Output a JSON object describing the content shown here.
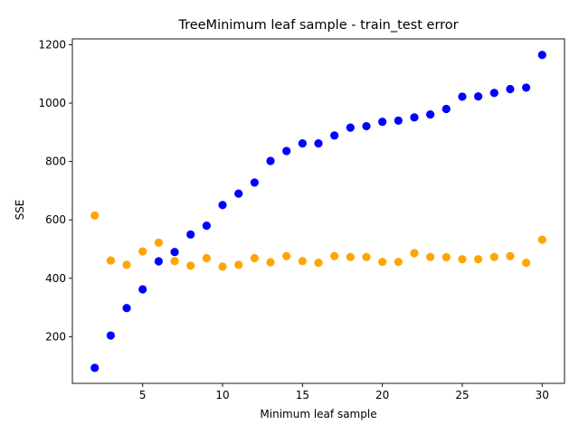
{
  "chart_data": {
    "type": "scatter",
    "title": "TreeMinimum leaf sample - train_test error",
    "xlabel": "Minimum leaf sample",
    "ylabel": "SSE",
    "xlim": [
      0.6,
      31.4
    ],
    "ylim": [
      40,
      1220
    ],
    "xticks": [
      5,
      10,
      15,
      20,
      25,
      30
    ],
    "yticks": [
      200,
      400,
      600,
      800,
      1000,
      1200
    ],
    "grid": false,
    "series": [
      {
        "color": "#0000ff",
        "x": [
          2,
          3,
          4,
          5,
          6,
          7,
          8,
          9,
          10,
          11,
          12,
          13,
          14,
          15,
          16,
          17,
          18,
          19,
          20,
          21,
          22,
          23,
          24,
          25,
          26,
          27,
          28,
          29,
          30
        ],
        "y": [
          93,
          204,
          298,
          362,
          458,
          490,
          550,
          580,
          651,
          690,
          728,
          802,
          836,
          862,
          862,
          889,
          916,
          921,
          936,
          940,
          951,
          961,
          980,
          1022,
          1023,
          1035,
          1048,
          1053,
          1165
        ]
      },
      {
        "color": "#ffa500",
        "x": [
          2,
          3,
          4,
          5,
          6,
          7,
          8,
          9,
          10,
          11,
          12,
          13,
          14,
          15,
          16,
          17,
          18,
          19,
          20,
          21,
          22,
          23,
          24,
          25,
          26,
          27,
          28,
          29,
          30
        ],
        "y": [
          615,
          461,
          446,
          492,
          522,
          459,
          443,
          469,
          440,
          446,
          469,
          455,
          476,
          459,
          453,
          476,
          473,
          473,
          456,
          456,
          486,
          473,
          472,
          465,
          465,
          473,
          476,
          453,
          532
        ]
      }
    ]
  }
}
